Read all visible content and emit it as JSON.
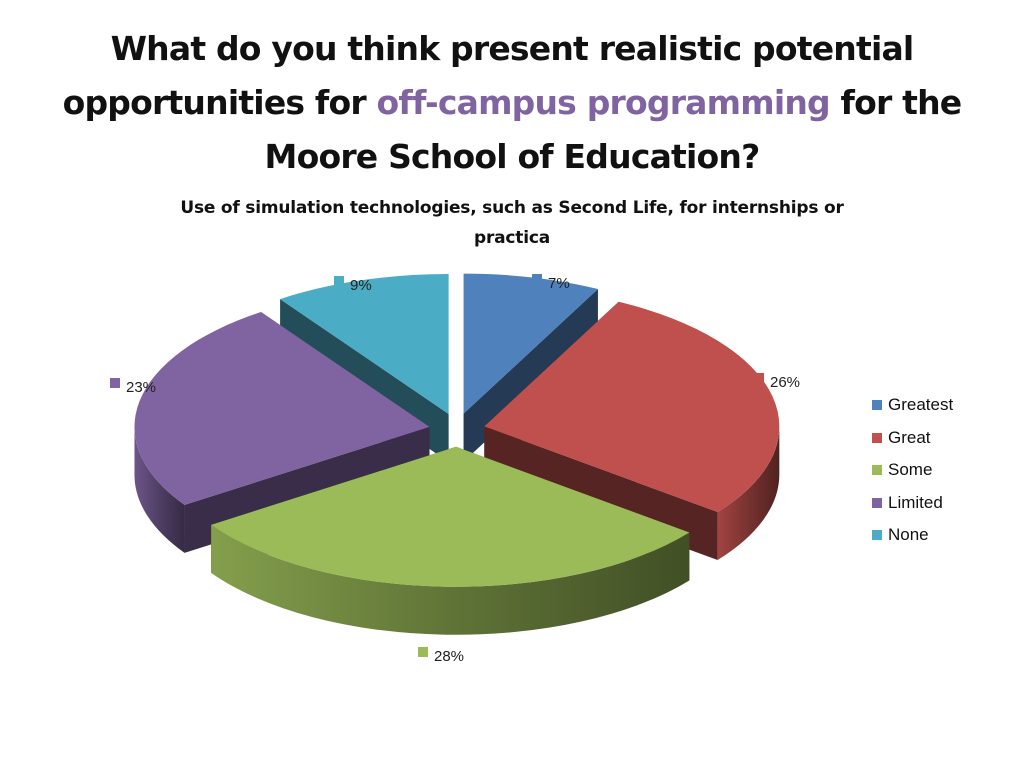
{
  "slide": {
    "title_before": "What do you think present realistic potential opportunities for",
    "title_highlight": "off-campus programming",
    "title_after": "for the Moore School of Education?"
  },
  "chart_data": {
    "type": "pie",
    "style": "3d-exploded",
    "title": "Use of simulation technologies, such as Second Life, for internships or practica",
    "categories": [
      "Greatest",
      "Great",
      "Some",
      "Limited",
      "None"
    ],
    "values": [
      7,
      26,
      28,
      23,
      9
    ],
    "value_labels": [
      "7%",
      "26%",
      "28%",
      "23%",
      "9%"
    ],
    "colors": [
      "#4f81bd",
      "#c0504d",
      "#9bbb59",
      "#8064a2",
      "#4bacc6"
    ],
    "legend_position": "right"
  }
}
